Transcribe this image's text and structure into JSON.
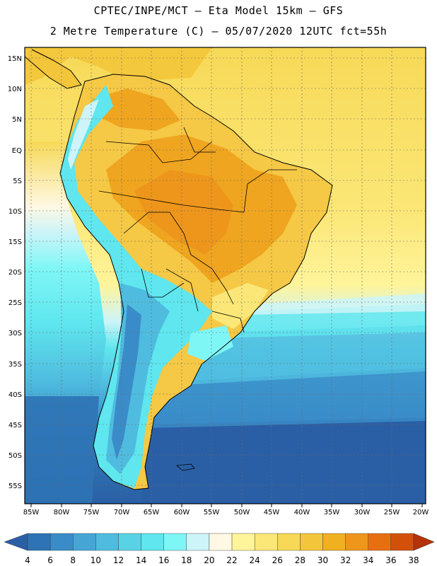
{
  "header": {
    "line1": "CPTEC/INPE/MCT –  Eta Model 15km – GFS",
    "line2": "2 Metre Temperature (C) – 05/07/2020 12UTC fct=55h"
  },
  "axes": {
    "lon_labels": [
      "85W",
      "80W",
      "75W",
      "70W",
      "65W",
      "60W",
      "55W",
      "50W",
      "45W",
      "40W",
      "35W",
      "30W",
      "25W",
      "20W"
    ],
    "lat_labels": [
      "15N",
      "10N",
      "5N",
      "EQ",
      "5S",
      "10S",
      "15S",
      "20S",
      "25S",
      "30S",
      "35S",
      "40S",
      "45S",
      "50S",
      "55S"
    ]
  },
  "colorbar": {
    "levels": [
      "4",
      "6",
      "8",
      "10",
      "12",
      "14",
      "16",
      "18",
      "20",
      "22",
      "24",
      "26",
      "28",
      "30",
      "32",
      "34",
      "36",
      "38"
    ],
    "colors": [
      "#2a5fa5",
      "#2e73b5",
      "#3a8cc8",
      "#45a6d6",
      "#4fbcdf",
      "#5ad2e6",
      "#5fe6ee",
      "#7ff6f6",
      "#cdf4f8",
      "#fef8e4",
      "#fef49a",
      "#fbe777",
      "#f7d957",
      "#f3c53a",
      "#f0b020",
      "#ee961b",
      "#e86f10",
      "#d3500b",
      "#b53308"
    ]
  },
  "colors": {
    "land_hot": "#efa51f",
    "land_warm": "#f5c845",
    "ocean_cold": "#2a5fa5",
    "ocean_mid": "#4fbcdf",
    "andes": "#7fe2ee"
  }
}
